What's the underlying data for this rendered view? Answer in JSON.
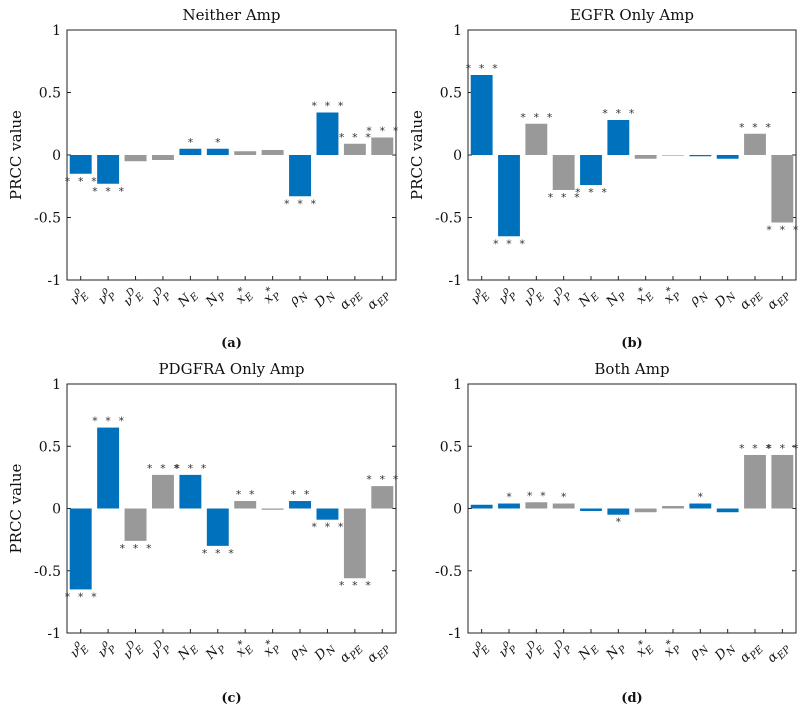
{
  "chart_data": [
    {
      "type": "bar",
      "title": "Neither Amp",
      "panel_label": "(a)",
      "ylabel": "PRCC value",
      "ylim": [
        -1,
        1
      ],
      "yticks": [
        "-1",
        "-0.5",
        "0",
        "0.5",
        "1"
      ],
      "categories": [
        "νρE",
        "νρP",
        "νDE",
        "νDP",
        "NE",
        "NP",
        "x*E",
        "x*P",
        "ρN",
        "DN",
        "αPE",
        "αEP"
      ],
      "values": [
        -0.15,
        -0.23,
        -0.05,
        -0.04,
        0.05,
        0.05,
        0.03,
        0.04,
        -0.33,
        0.34,
        0.09,
        0.14
      ],
      "colors": [
        "#0072BD",
        "#0072BD",
        "#999999",
        "#999999",
        "#0072BD",
        "#0072BD",
        "#999999",
        "#999999",
        "#0072BD",
        "#0072BD",
        "#999999",
        "#999999"
      ],
      "significance": [
        "***",
        "***",
        "",
        "",
        "*",
        "*",
        "",
        "",
        "***",
        "***",
        "***",
        "***"
      ]
    },
    {
      "type": "bar",
      "title": "EGFR Only Amp",
      "panel_label": "(b)",
      "ylabel": "PRCC value",
      "ylim": [
        -1,
        1
      ],
      "yticks": [
        "-1",
        "-0.5",
        "0",
        "0.5",
        "1"
      ],
      "categories": [
        "νρE",
        "νρP",
        "νDE",
        "νDP",
        "NE",
        "NP",
        "x*E",
        "x*P",
        "ρN",
        "DN",
        "αPE",
        "αEP"
      ],
      "values": [
        0.64,
        -0.65,
        0.25,
        -0.28,
        -0.24,
        0.28,
        -0.03,
        0.0,
        -0.01,
        -0.03,
        0.17,
        -0.54
      ],
      "colors": [
        "#0072BD",
        "#0072BD",
        "#999999",
        "#999999",
        "#0072BD",
        "#0072BD",
        "#999999",
        "#999999",
        "#0072BD",
        "#0072BD",
        "#999999",
        "#999999"
      ],
      "significance": [
        "***",
        "***",
        "***",
        "***",
        "***",
        "***",
        "",
        "",
        "",
        "",
        "***",
        "***"
      ]
    },
    {
      "type": "bar",
      "title": "PDGFRA Only Amp",
      "panel_label": "(c)",
      "ylabel": "PRCC value",
      "ylim": [
        -1,
        1
      ],
      "yticks": [
        "-1",
        "-0.5",
        "0",
        "0.5",
        "1"
      ],
      "categories": [
        "νρE",
        "νρP",
        "νDE",
        "νDP",
        "NE",
        "NP",
        "x*E",
        "x*P",
        "ρN",
        "DN",
        "αPE",
        "αEP"
      ],
      "values": [
        -0.65,
        0.65,
        -0.26,
        0.27,
        0.27,
        -0.3,
        0.06,
        -0.01,
        0.06,
        -0.09,
        -0.56,
        0.18
      ],
      "colors": [
        "#0072BD",
        "#0072BD",
        "#999999",
        "#999999",
        "#0072BD",
        "#0072BD",
        "#999999",
        "#999999",
        "#0072BD",
        "#0072BD",
        "#999999",
        "#999999"
      ],
      "significance": [
        "***",
        "***",
        "***",
        "***",
        "***",
        "***",
        "**",
        "",
        "**",
        "***",
        "***",
        "***"
      ]
    },
    {
      "type": "bar",
      "title": "Both Amp",
      "panel_label": "(d)",
      "ylabel": "",
      "ylim": [
        -1,
        1
      ],
      "yticks": [
        "-1",
        "-0.5",
        "0",
        "0.5",
        "1"
      ],
      "categories": [
        "νρE",
        "νρP",
        "νDE",
        "νDP",
        "NE",
        "NP",
        "x*E",
        "x*P",
        "ρN",
        "DN",
        "αPE",
        "αEP"
      ],
      "values": [
        0.03,
        0.04,
        0.05,
        0.04,
        -0.02,
        -0.05,
        -0.03,
        0.02,
        0.04,
        -0.03,
        0.43,
        0.43
      ],
      "colors": [
        "#0072BD",
        "#0072BD",
        "#999999",
        "#999999",
        "#0072BD",
        "#0072BD",
        "#999999",
        "#999999",
        "#0072BD",
        "#0072BD",
        "#999999",
        "#999999"
      ],
      "significance": [
        "",
        "*",
        "**",
        "*",
        "",
        "*",
        "",
        "",
        "*",
        "",
        "***",
        "***"
      ]
    }
  ]
}
